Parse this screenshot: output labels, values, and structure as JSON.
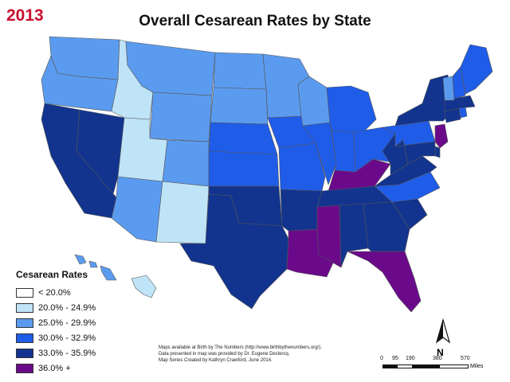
{
  "year_label": "2013",
  "title": "Overall Cesarean Rates by State",
  "legend": {
    "title": "Cesarean Rates",
    "items": [
      {
        "label": "< 20.0%",
        "color": "#ffffff"
      },
      {
        "label": "20.0% - 24.9%",
        "color": "#bfe4f8"
      },
      {
        "label": "25.0% - 29.9%",
        "color": "#5b9bef"
      },
      {
        "label": "30.0% - 32.9%",
        "color": "#1f5ce8"
      },
      {
        "label": "33.0% - 35.9%",
        "color": "#12348e"
      },
      {
        "label": "36.0% +",
        "color": "#6a0a8a"
      }
    ]
  },
  "credits": [
    "Maps available at Birth by The Numbers (http://www.birthbythenumbers.org/).",
    "Data presented in map was provided by Dr. Eugene Declercq.",
    "Map Series Created by Kathryn Crawford, June 2014."
  ],
  "scale": {
    "ticks": [
      "0",
      "95",
      "190",
      "380",
      "570"
    ],
    "unit": "Miles"
  },
  "north_label": "N",
  "state_categories": {
    "WA": "25.0% - 29.9%",
    "OR": "25.0% - 29.9%",
    "CA": "33.0% - 35.9%",
    "NV": "33.0% - 35.9%",
    "ID": "20.0% - 24.9%",
    "MT": "25.0% - 29.9%",
    "WY": "25.0% - 29.9%",
    "UT": "20.0% - 24.9%",
    "AZ": "25.0% - 29.9%",
    "CO": "25.0% - 29.9%",
    "NM": "20.0% - 24.9%",
    "ND": "25.0% - 29.9%",
    "SD": "25.0% - 29.9%",
    "NE": "30.0% - 32.9%",
    "KS": "30.0% - 32.9%",
    "OK": "33.0% - 35.9%",
    "TX": "33.0% - 35.9%",
    "MN": "25.0% - 29.9%",
    "IA": "30.0% - 32.9%",
    "MO": "30.0% - 32.9%",
    "AR": "33.0% - 35.9%",
    "LA": "36.0% +",
    "WI": "25.0% - 29.9%",
    "IL": "30.0% - 32.9%",
    "MS": "36.0% +",
    "MI": "30.0% - 32.9%",
    "IN": "30.0% - 32.9%",
    "KY": "36.0% +",
    "TN": "33.0% - 35.9%",
    "AL": "33.0% - 35.9%",
    "OH": "30.0% - 32.9%",
    "WV": "33.0% - 35.9%",
    "GA": "33.0% - 35.9%",
    "FL": "36.0% +",
    "SC": "33.0% - 35.9%",
    "NC": "30.0% - 32.9%",
    "VA": "33.0% - 35.9%",
    "PA": "30.0% - 32.9%",
    "NY": "33.0% - 35.9%",
    "NJ": "36.0% +",
    "DE": "33.0% - 35.9%",
    "MD": "33.0% - 35.9%",
    "CT": "33.0% - 35.9%",
    "RI": "30.0% - 32.9%",
    "MA": "33.0% - 35.9%",
    "VT": "25.0% - 29.9%",
    "NH": "30.0% - 32.9%",
    "ME": "30.0% - 32.9%",
    "AK": "20.0% - 24.9%",
    "HI": "25.0% - 29.9%"
  }
}
